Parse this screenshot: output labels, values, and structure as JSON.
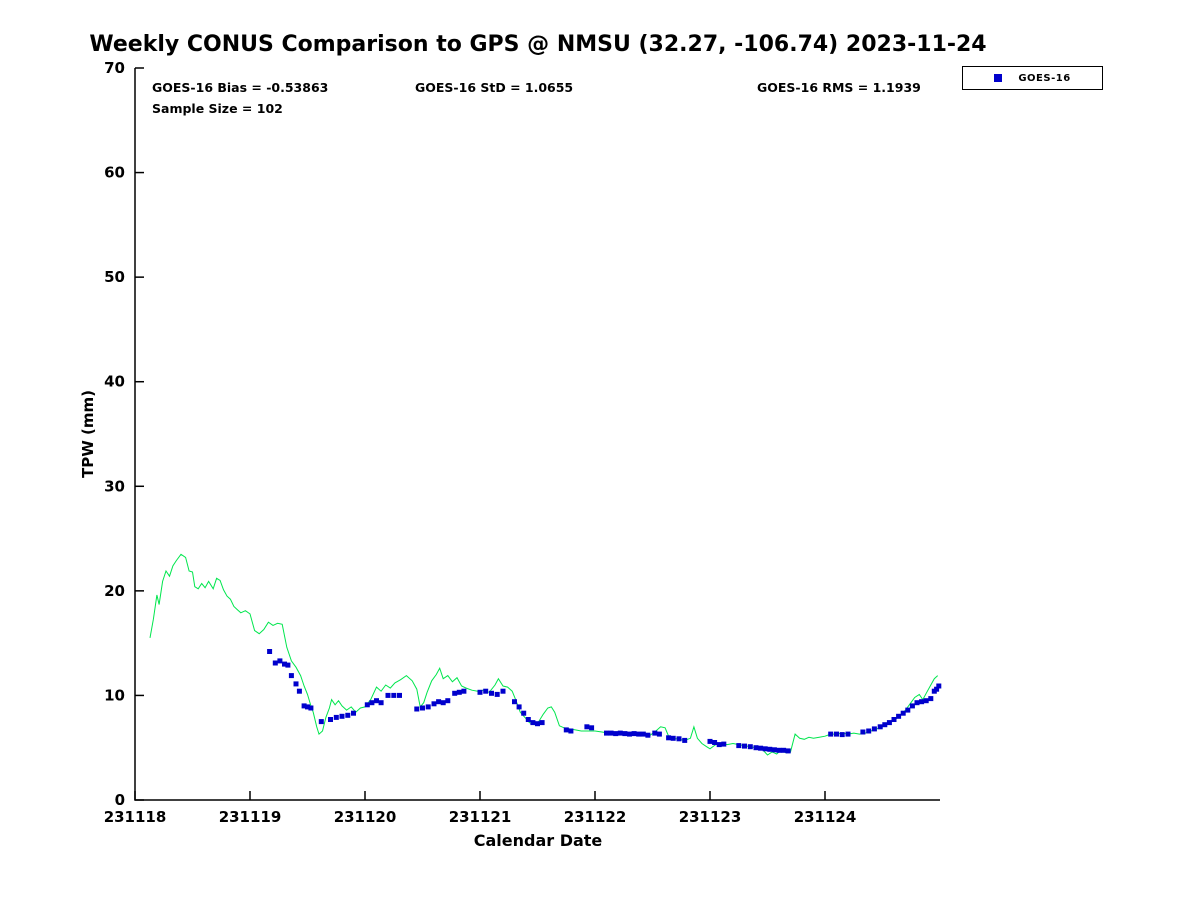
{
  "chart_data": {
    "type": "line",
    "title": "Weekly CONUS Comparison to GPS @ NMSU (32.27, -106.74) 2023-11-24",
    "xlabel": "Calendar Date",
    "ylabel": "TPW (mm)",
    "xlim": [
      231118,
      231125
    ],
    "ylim": [
      0,
      70
    ],
    "xticks": [
      231118,
      231119,
      231120,
      231121,
      231122,
      231123,
      231124
    ],
    "yticks": [
      0,
      10,
      20,
      30,
      40,
      50,
      60,
      70
    ],
    "grid": false,
    "stats": {
      "bias": -0.53863,
      "std": 1.0655,
      "rms": 1.1939,
      "sample_size": 102
    },
    "stat_labels": {
      "bias": "GOES-16 Bias = -0.53863",
      "std": "GOES-16 StD = 1.0655",
      "rms": "GOES-16 RMS = 1.1939",
      "sample": "Sample Size = 102"
    },
    "legend": {
      "position": "top-right",
      "entries": [
        {
          "label": "GOES-16",
          "marker": "square",
          "color": "#0000cc"
        }
      ]
    },
    "series": [
      {
        "name": "GPS",
        "style": "line",
        "color": "#00e64d",
        "points": [
          [
            231118.13,
            15.5
          ],
          [
            231118.16,
            17.3
          ],
          [
            231118.19,
            19.6
          ],
          [
            231118.21,
            18.7
          ],
          [
            231118.24,
            20.9
          ],
          [
            231118.27,
            21.9
          ],
          [
            231118.3,
            21.4
          ],
          [
            231118.33,
            22.4
          ],
          [
            231118.36,
            22.9
          ],
          [
            231118.4,
            23.5
          ],
          [
            231118.44,
            23.2
          ],
          [
            231118.47,
            21.9
          ],
          [
            231118.5,
            21.8
          ],
          [
            231118.52,
            20.4
          ],
          [
            231118.55,
            20.2
          ],
          [
            231118.58,
            20.7
          ],
          [
            231118.61,
            20.3
          ],
          [
            231118.64,
            20.9
          ],
          [
            231118.68,
            20.2
          ],
          [
            231118.71,
            21.2
          ],
          [
            231118.74,
            21.0
          ],
          [
            231118.77,
            20.1
          ],
          [
            231118.8,
            19.5
          ],
          [
            231118.83,
            19.2
          ],
          [
            231118.86,
            18.5
          ],
          [
            231118.89,
            18.2
          ],
          [
            231118.92,
            17.9
          ],
          [
            231118.96,
            18.1
          ],
          [
            231119.0,
            17.8
          ],
          [
            231119.04,
            16.2
          ],
          [
            231119.08,
            15.9
          ],
          [
            231119.12,
            16.3
          ],
          [
            231119.16,
            17.0
          ],
          [
            231119.2,
            16.7
          ],
          [
            231119.24,
            16.9
          ],
          [
            231119.28,
            16.8
          ],
          [
            231119.32,
            14.6
          ],
          [
            231119.36,
            13.3
          ],
          [
            231119.4,
            12.7
          ],
          [
            231119.44,
            11.9
          ],
          [
            231119.47,
            10.9
          ],
          [
            231119.5,
            10.1
          ],
          [
            231119.53,
            9.0
          ],
          [
            231119.55,
            8.4
          ],
          [
            231119.58,
            7.0
          ],
          [
            231119.6,
            6.3
          ],
          [
            231119.63,
            6.6
          ],
          [
            231119.66,
            7.9
          ],
          [
            231119.69,
            8.8
          ],
          [
            231119.71,
            9.6
          ],
          [
            231119.74,
            9.1
          ],
          [
            231119.77,
            9.5
          ],
          [
            231119.8,
            9.0
          ],
          [
            231119.84,
            8.6
          ],
          [
            231119.88,
            8.9
          ],
          [
            231119.92,
            8.4
          ],
          [
            231119.96,
            8.8
          ],
          [
            231120.0,
            8.9
          ],
          [
            231120.05,
            9.6
          ],
          [
            231120.1,
            10.8
          ],
          [
            231120.14,
            10.4
          ],
          [
            231120.18,
            11.0
          ],
          [
            231120.22,
            10.7
          ],
          [
            231120.26,
            11.2
          ],
          [
            231120.31,
            11.5
          ],
          [
            231120.36,
            11.9
          ],
          [
            231120.41,
            11.4
          ],
          [
            231120.45,
            10.6
          ],
          [
            231120.48,
            8.9
          ],
          [
            231120.51,
            9.3
          ],
          [
            231120.54,
            10.3
          ],
          [
            231120.58,
            11.4
          ],
          [
            231120.62,
            12.0
          ],
          [
            231120.65,
            12.6
          ],
          [
            231120.68,
            11.6
          ],
          [
            231120.72,
            11.9
          ],
          [
            231120.76,
            11.3
          ],
          [
            231120.8,
            11.7
          ],
          [
            231120.84,
            10.9
          ],
          [
            231120.88,
            10.7
          ],
          [
            231120.93,
            10.5
          ],
          [
            231120.98,
            10.4
          ],
          [
            231121.03,
            10.5
          ],
          [
            231121.08,
            10.3
          ],
          [
            231121.13,
            11.0
          ],
          [
            231121.16,
            11.6
          ],
          [
            231121.2,
            10.9
          ],
          [
            231121.24,
            10.8
          ],
          [
            231121.28,
            10.4
          ],
          [
            231121.31,
            9.6
          ],
          [
            231121.35,
            8.4
          ],
          [
            231121.39,
            7.9
          ],
          [
            231121.43,
            7.4
          ],
          [
            231121.47,
            7.2
          ],
          [
            231121.51,
            7.5
          ],
          [
            231121.55,
            8.2
          ],
          [
            231121.59,
            8.8
          ],
          [
            231121.62,
            8.9
          ],
          [
            231121.65,
            8.4
          ],
          [
            231121.69,
            7.1
          ],
          [
            231121.73,
            6.9
          ],
          [
            231121.78,
            6.8
          ],
          [
            231121.83,
            6.7
          ],
          [
            231121.88,
            6.6
          ],
          [
            231121.94,
            6.6
          ],
          [
            231122.0,
            6.6
          ],
          [
            231122.06,
            6.5
          ],
          [
            231122.12,
            6.4
          ],
          [
            231122.18,
            6.4
          ],
          [
            231122.24,
            6.4
          ],
          [
            231122.3,
            6.3
          ],
          [
            231122.36,
            6.3
          ],
          [
            231122.42,
            6.3
          ],
          [
            231122.48,
            6.2
          ],
          [
            231122.53,
            6.6
          ],
          [
            231122.57,
            7.0
          ],
          [
            231122.61,
            6.9
          ],
          [
            231122.64,
            6.1
          ],
          [
            231122.68,
            5.9
          ],
          [
            231122.73,
            5.8
          ],
          [
            231122.78,
            5.7
          ],
          [
            231122.83,
            5.9
          ],
          [
            231122.86,
            7.0
          ],
          [
            231122.89,
            5.9
          ],
          [
            231122.93,
            5.4
          ],
          [
            231122.97,
            5.1
          ],
          [
            231123.0,
            4.9
          ],
          [
            231123.05,
            5.3
          ],
          [
            231123.1,
            5.4
          ],
          [
            231123.15,
            5.3
          ],
          [
            231123.2,
            5.4
          ],
          [
            231123.25,
            5.3
          ],
          [
            231123.3,
            5.2
          ],
          [
            231123.35,
            5.1
          ],
          [
            231123.4,
            5.0
          ],
          [
            231123.45,
            4.9
          ],
          [
            231123.5,
            4.3
          ],
          [
            231123.54,
            4.6
          ],
          [
            231123.58,
            4.4
          ],
          [
            231123.62,
            4.8
          ],
          [
            231123.66,
            4.5
          ],
          [
            231123.7,
            4.6
          ],
          [
            231123.74,
            6.3
          ],
          [
            231123.78,
            5.9
          ],
          [
            231123.82,
            5.8
          ],
          [
            231123.86,
            6.0
          ],
          [
            231123.9,
            5.9
          ],
          [
            231123.95,
            6.0
          ],
          [
            231124.0,
            6.1
          ],
          [
            231124.05,
            6.3
          ],
          [
            231124.1,
            6.3
          ],
          [
            231124.15,
            6.4
          ],
          [
            231124.2,
            6.3
          ],
          [
            231124.25,
            6.4
          ],
          [
            231124.3,
            6.3
          ],
          [
            231124.35,
            6.4
          ],
          [
            231124.4,
            6.6
          ],
          [
            231124.45,
            6.8
          ],
          [
            231124.5,
            7.0
          ],
          [
            231124.55,
            7.3
          ],
          [
            231124.6,
            7.6
          ],
          [
            231124.65,
            8.0
          ],
          [
            231124.7,
            8.6
          ],
          [
            231124.74,
            9.2
          ],
          [
            231124.78,
            9.8
          ],
          [
            231124.82,
            10.1
          ],
          [
            231124.85,
            9.6
          ],
          [
            231124.88,
            10.2
          ],
          [
            231124.92,
            11.0
          ],
          [
            231124.95,
            11.6
          ],
          [
            231124.98,
            11.9
          ]
        ]
      },
      {
        "name": "GOES-16",
        "style": "scatter",
        "marker": "square",
        "color": "#0000cc",
        "points": [
          [
            231119.17,
            14.2
          ],
          [
            231119.22,
            13.1
          ],
          [
            231119.26,
            13.3
          ],
          [
            231119.3,
            13.0
          ],
          [
            231119.33,
            12.9
          ],
          [
            231119.36,
            11.9
          ],
          [
            231119.4,
            11.1
          ],
          [
            231119.43,
            10.4
          ],
          [
            231119.47,
            9.0
          ],
          [
            231119.5,
            8.9
          ],
          [
            231119.53,
            8.8
          ],
          [
            231119.62,
            7.5
          ],
          [
            231119.7,
            7.7
          ],
          [
            231119.75,
            7.9
          ],
          [
            231119.8,
            8.0
          ],
          [
            231119.85,
            8.1
          ],
          [
            231119.9,
            8.3
          ],
          [
            231120.02,
            9.1
          ],
          [
            231120.06,
            9.3
          ],
          [
            231120.1,
            9.5
          ],
          [
            231120.14,
            9.3
          ],
          [
            231120.2,
            10.0
          ],
          [
            231120.25,
            10.0
          ],
          [
            231120.3,
            10.0
          ],
          [
            231120.45,
            8.7
          ],
          [
            231120.5,
            8.8
          ],
          [
            231120.55,
            8.9
          ],
          [
            231120.6,
            9.2
          ],
          [
            231120.64,
            9.4
          ],
          [
            231120.68,
            9.3
          ],
          [
            231120.72,
            9.5
          ],
          [
            231120.78,
            10.2
          ],
          [
            231120.82,
            10.3
          ],
          [
            231120.86,
            10.4
          ],
          [
            231121.0,
            10.3
          ],
          [
            231121.05,
            10.4
          ],
          [
            231121.1,
            10.2
          ],
          [
            231121.15,
            10.1
          ],
          [
            231121.2,
            10.4
          ],
          [
            231121.3,
            9.4
          ],
          [
            231121.34,
            8.9
          ],
          [
            231121.38,
            8.3
          ],
          [
            231121.42,
            7.7
          ],
          [
            231121.46,
            7.4
          ],
          [
            231121.5,
            7.3
          ],
          [
            231121.54,
            7.4
          ],
          [
            231121.75,
            6.7
          ],
          [
            231121.79,
            6.6
          ],
          [
            231121.93,
            7.0
          ],
          [
            231121.97,
            6.9
          ],
          [
            231122.1,
            6.4
          ],
          [
            231122.14,
            6.4
          ],
          [
            231122.18,
            6.35
          ],
          [
            231122.22,
            6.4
          ],
          [
            231122.26,
            6.35
          ],
          [
            231122.3,
            6.3
          ],
          [
            231122.34,
            6.35
          ],
          [
            231122.38,
            6.3
          ],
          [
            231122.42,
            6.3
          ],
          [
            231122.46,
            6.2
          ],
          [
            231122.52,
            6.4
          ],
          [
            231122.56,
            6.3
          ],
          [
            231122.64,
            5.95
          ],
          [
            231122.68,
            5.9
          ],
          [
            231122.73,
            5.85
          ],
          [
            231122.78,
            5.7
          ],
          [
            231123.0,
            5.6
          ],
          [
            231123.04,
            5.5
          ],
          [
            231123.08,
            5.3
          ],
          [
            231123.12,
            5.35
          ],
          [
            231123.25,
            5.2
          ],
          [
            231123.3,
            5.15
          ],
          [
            231123.35,
            5.1
          ],
          [
            231123.4,
            5.0
          ],
          [
            231123.44,
            4.95
          ],
          [
            231123.48,
            4.9
          ],
          [
            231123.52,
            4.85
          ],
          [
            231123.56,
            4.8
          ],
          [
            231123.6,
            4.75
          ],
          [
            231123.64,
            4.75
          ],
          [
            231123.68,
            4.7
          ],
          [
            231124.05,
            6.3
          ],
          [
            231124.1,
            6.3
          ],
          [
            231124.15,
            6.25
          ],
          [
            231124.2,
            6.3
          ],
          [
            231124.33,
            6.5
          ],
          [
            231124.38,
            6.6
          ],
          [
            231124.43,
            6.8
          ],
          [
            231124.48,
            7.0
          ],
          [
            231124.52,
            7.2
          ],
          [
            231124.56,
            7.4
          ],
          [
            231124.6,
            7.7
          ],
          [
            231124.64,
            8.0
          ],
          [
            231124.68,
            8.3
          ],
          [
            231124.72,
            8.6
          ],
          [
            231124.76,
            9.0
          ],
          [
            231124.8,
            9.3
          ],
          [
            231124.84,
            9.4
          ],
          [
            231124.88,
            9.5
          ],
          [
            231124.92,
            9.7
          ],
          [
            231124.95,
            10.4
          ],
          [
            231124.97,
            10.6
          ],
          [
            231124.99,
            10.9
          ]
        ]
      }
    ]
  }
}
